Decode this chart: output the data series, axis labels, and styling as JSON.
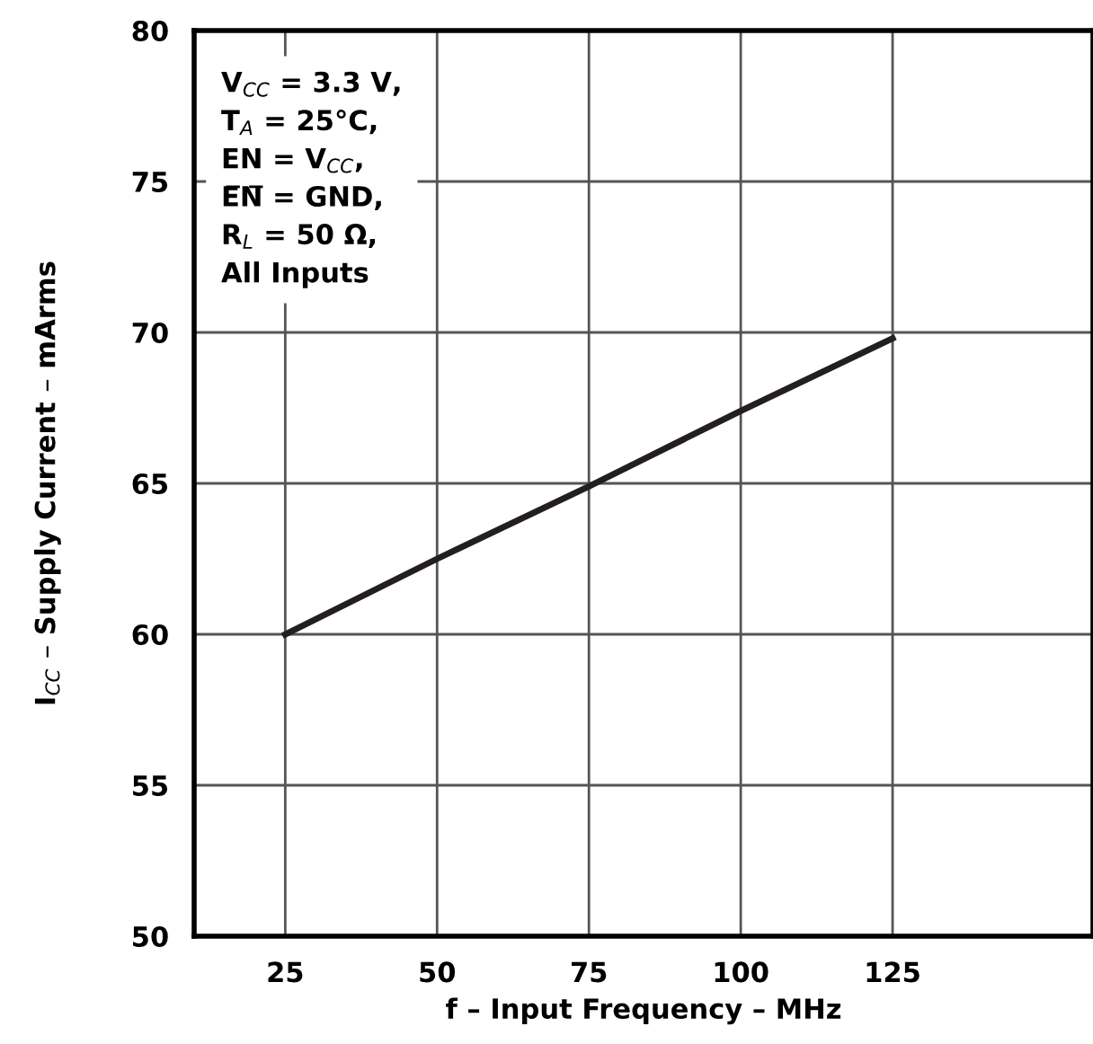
{
  "chart_data": {
    "type": "line",
    "xlabel": "f – Input Frequency – MHz",
    "ylabel": "I$_{CC}$ – Supply Current – mArms",
    "x": [
      25,
      50,
      75,
      100,
      125
    ],
    "series": [
      {
        "color": "#231f20",
        "values": [
          60,
          62.5,
          64.9,
          67.4,
          69.8
        ]
      }
    ],
    "xlim": [
      10,
      158
    ],
    "ylim": [
      50,
      80
    ],
    "xticks": [
      25,
      50,
      75,
      100,
      125
    ],
    "yticks": [
      50,
      55,
      60,
      65,
      70,
      75,
      80
    ],
    "grid": true,
    "legend": false,
    "marker": "none",
    "line_style": "solid",
    "annotations": [
      "V$_{CC}$ = 3.3 V,",
      "T$_{A}$ = 25°C,",
      "EN = V$_{CC}$,",
      "E̅N̅ = GND,",
      "R$_{L}$ = 50 Ω,",
      "All Inputs"
    ]
  }
}
